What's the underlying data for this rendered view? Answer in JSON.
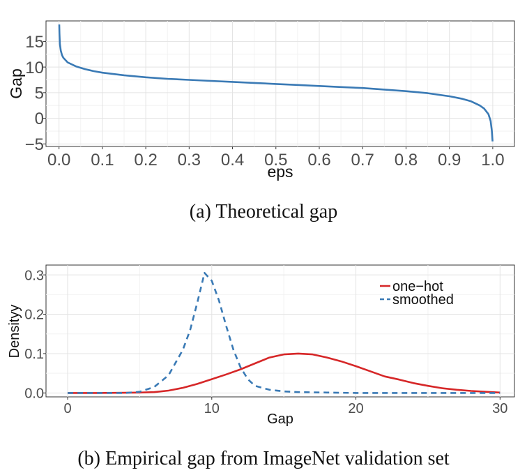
{
  "captions": {
    "a": "(a) Theoretical gap",
    "b": "(b) Empirical gap from ImageNet validation set"
  },
  "chart_data": [
    {
      "id": "a",
      "type": "line",
      "xlabel": "eps",
      "ylabel": "Gap",
      "xlim": [
        -0.03,
        1.05
      ],
      "ylim": [
        -5.5,
        19
      ],
      "xticks": [
        0.0,
        0.1,
        0.2,
        0.3,
        0.4,
        0.5,
        0.6,
        0.7,
        0.8,
        0.9,
        1.0
      ],
      "xtick_labels": [
        "0.0",
        "0.1",
        "0.2",
        "0.3",
        "0.4",
        "0.5",
        "0.6",
        "0.7",
        "0.8",
        "0.9",
        "1.0"
      ],
      "yticks": [
        -5,
        0,
        5,
        10,
        15
      ],
      "ytick_labels": [
        "−5",
        "0",
        "5",
        "10",
        "15"
      ],
      "grid": true,
      "series": [
        {
          "color": "#3a7ab5",
          "x": [
            0.0005,
            0.001,
            0.002,
            0.004,
            0.007,
            0.01,
            0.02,
            0.04,
            0.06,
            0.08,
            0.1,
            0.15,
            0.2,
            0.25,
            0.3,
            0.35,
            0.4,
            0.45,
            0.5,
            0.55,
            0.6,
            0.65,
            0.7,
            0.75,
            0.8,
            0.85,
            0.9,
            0.93,
            0.95,
            0.97,
            0.98,
            0.99,
            0.995,
            0.998,
            0.9995
          ],
          "y": [
            18.3,
            16.5,
            14.5,
            13.2,
            12.3,
            11.8,
            10.9,
            10.1,
            9.6,
            9.2,
            8.9,
            8.4,
            8.0,
            7.7,
            7.5,
            7.3,
            7.1,
            6.9,
            6.7,
            6.5,
            6.3,
            6.1,
            5.9,
            5.6,
            5.3,
            4.9,
            4.3,
            3.8,
            3.3,
            2.5,
            1.9,
            0.8,
            -0.5,
            -2.5,
            -4.5
          ]
        }
      ]
    },
    {
      "id": "b",
      "type": "line",
      "xlabel": "Gap",
      "ylabel": "Densityy",
      "xlim": [
        -1.5,
        31
      ],
      "ylim": [
        -0.01,
        0.325
      ],
      "xticks": [
        0,
        10,
        20,
        30
      ],
      "xtick_labels": [
        "0",
        "10",
        "20",
        "30"
      ],
      "yticks": [
        0.0,
        0.1,
        0.2,
        0.3
      ],
      "ytick_labels": [
        "0.0",
        "0.1",
        "0.2",
        "0.3"
      ],
      "grid": true,
      "legend_position": "top-right",
      "series": [
        {
          "name": "one−hot",
          "color": "#d62728",
          "dash": "solid",
          "x": [
            0,
            2,
            4,
            5,
            6,
            7,
            8,
            9,
            10,
            11,
            12,
            13,
            14,
            15,
            16,
            17,
            18,
            19,
            20,
            21,
            22,
            23,
            24,
            25,
            26,
            27,
            28,
            29,
            30
          ],
          "y": [
            0.0,
            0.0,
            0.0005,
            0.001,
            0.002,
            0.006,
            0.013,
            0.023,
            0.035,
            0.047,
            0.06,
            0.075,
            0.09,
            0.098,
            0.1,
            0.098,
            0.09,
            0.08,
            0.068,
            0.055,
            0.042,
            0.034,
            0.025,
            0.018,
            0.012,
            0.008,
            0.005,
            0.003,
            0.001
          ]
        },
        {
          "name": "smoothed",
          "color": "#3a7ab5",
          "dash": "dashed",
          "x": [
            0,
            2,
            4,
            5,
            6,
            7,
            8,
            8.5,
            9,
            9.5,
            10,
            10.5,
            11,
            11.5,
            12,
            12.5,
            13,
            14,
            15,
            16,
            18,
            20,
            22,
            25,
            30
          ],
          "y": [
            0.0,
            0.0,
            0.0,
            0.003,
            0.015,
            0.045,
            0.11,
            0.16,
            0.23,
            0.305,
            0.285,
            0.235,
            0.17,
            0.11,
            0.065,
            0.035,
            0.018,
            0.008,
            0.004,
            0.002,
            0.001,
            0.0,
            0.0,
            0.0,
            0.0
          ]
        }
      ]
    }
  ]
}
